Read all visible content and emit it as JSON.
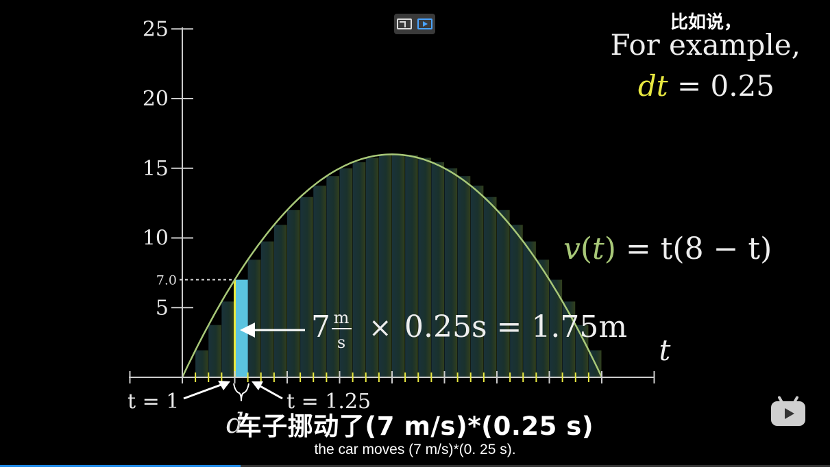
{
  "video": {
    "progress_fraction": 0.29,
    "colors": {
      "background": "#000000",
      "curve": "#a8c878",
      "highlight": "#5bc4e0",
      "dt_yellow": "#e8e840",
      "progress": "#1e88e5"
    }
  },
  "overlay": {
    "left_icon": "pip-exit-icon",
    "right_icon": "screen-play-icon",
    "player_icon": "bilibili-tv-icon"
  },
  "caption": {
    "cn": "比如说，",
    "line1": "For example,",
    "dt_var": "dt",
    "dt_value": "= 0.25"
  },
  "chart_data": {
    "type": "bar",
    "function_label": {
      "v": "v",
      "t1": "t",
      "eq": "= ",
      "rhs": "t(8 − t)"
    },
    "x_axis_label": "t",
    "xlim": [
      0,
      8
    ],
    "ylim": [
      0,
      25
    ],
    "y_ticks": [
      "25",
      "20",
      "15",
      "10",
      "5"
    ],
    "y_tick_values": [
      25,
      20,
      15,
      10,
      5
    ],
    "dt": 0.25,
    "x_start": 0,
    "x_end": 8,
    "highlight": {
      "t_left": 1,
      "t_right": 1.25,
      "value": 7.0,
      "value_label": "7.0"
    },
    "annotation": {
      "left_num": "7",
      "unit_num": "m",
      "unit_den": "s",
      "times": "×",
      "rhs": "0.25s = 1.75m"
    },
    "t_labels": {
      "left": "t = 1",
      "right": "t = 1.25"
    },
    "brace_letter": "d"
  },
  "subtitles": {
    "cn": "车子挪动了(7 m/s)*(0.25 s)",
    "en": "the car moves (7 m/s)*(0. 25 s)."
  }
}
